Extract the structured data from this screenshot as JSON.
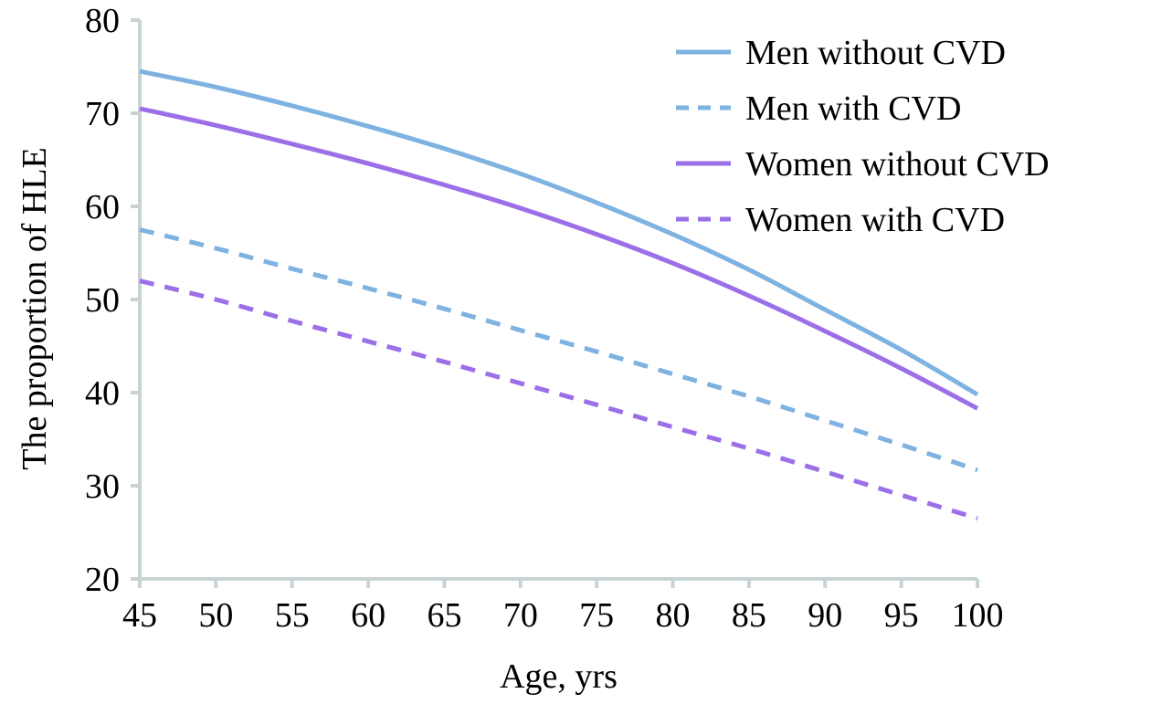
{
  "chart_data": {
    "type": "line",
    "title": "",
    "xlabel": "Age, yrs",
    "ylabel": "The proportion of HLE",
    "xlim": [
      45,
      100
    ],
    "ylim": [
      20,
      80
    ],
    "xticks": [
      "45",
      "50",
      "55",
      "60",
      "65",
      "70",
      "75",
      "80",
      "85",
      "90",
      "95",
      "100"
    ],
    "yticks": [
      "20",
      "30",
      "40",
      "50",
      "60",
      "70",
      "80"
    ],
    "grid": false,
    "legend_position": "top-right",
    "x": [
      45,
      50,
      55,
      60,
      65,
      70,
      75,
      80,
      85,
      90,
      95,
      100
    ],
    "series": [
      {
        "name": "Men without CVD",
        "color": "#7eb2e0",
        "dash": "solid",
        "values": [
          74.5,
          72.8,
          70.8,
          68.6,
          66.2,
          63.5,
          60.4,
          57.0,
          53.2,
          48.9,
          44.6,
          39.8
        ]
      },
      {
        "name": "Men with CVD",
        "color": "#7eb2e0",
        "dash": "dashed",
        "values": [
          57.5,
          55.5,
          53.3,
          51.2,
          49.0,
          46.7,
          44.4,
          42.0,
          39.6,
          37.0,
          34.4,
          31.7
        ]
      },
      {
        "name": "Women without CVD",
        "color": "#9b6fe8",
        "dash": "solid",
        "values": [
          70.5,
          68.7,
          66.7,
          64.6,
          62.3,
          59.8,
          57.0,
          53.9,
          50.4,
          46.6,
          42.6,
          38.3
        ]
      },
      {
        "name": "Women with CVD",
        "color": "#9b6fe8",
        "dash": "dashed",
        "values": [
          52.0,
          50.0,
          47.7,
          45.5,
          43.3,
          41.0,
          38.7,
          36.3,
          34.0,
          31.5,
          29.0,
          26.5
        ]
      }
    ]
  }
}
